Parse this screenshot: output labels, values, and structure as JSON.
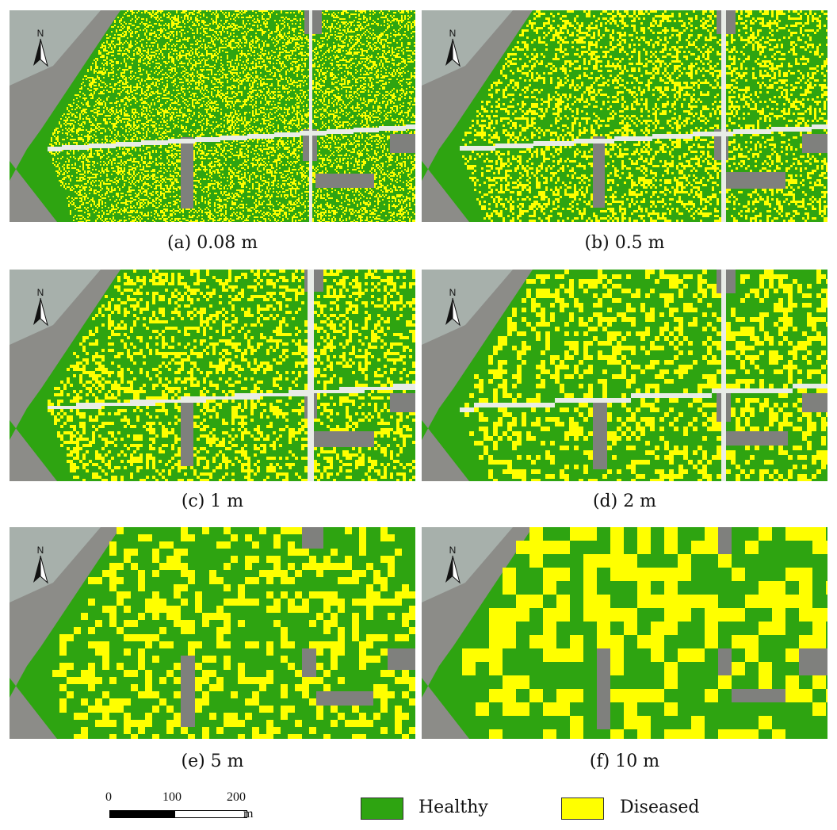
{
  "colors": {
    "healthy": "#2ea411",
    "diseased": "#ffff00",
    "background_gray": "#8c8c88",
    "road": "#e8ece6"
  },
  "north_label": "N",
  "panels": [
    {
      "caption": "(a) 0.08 m",
      "resolution_m": 0.08
    },
    {
      "caption": "(b) 0.5 m",
      "resolution_m": 0.5
    },
    {
      "caption": "(c) 1 m",
      "resolution_m": 1
    },
    {
      "caption": "(d) 2 m",
      "resolution_m": 2
    },
    {
      "caption": "(e) 5 m",
      "resolution_m": 5
    },
    {
      "caption": "(f) 10 m",
      "resolution_m": 10
    }
  ],
  "legend": {
    "healthy_label": "Healthy",
    "diseased_label": "Diseased"
  },
  "scale_bar": {
    "ticks": [
      "0",
      "100",
      "200"
    ],
    "unit": "m"
  }
}
